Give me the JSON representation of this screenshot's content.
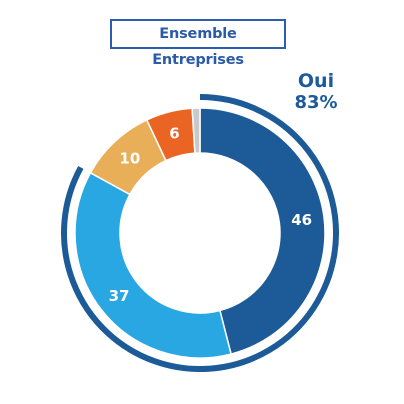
{
  "chart_data": {
    "type": "pie",
    "title": "Ensemble Entreprises",
    "values": [
      46,
      37,
      10,
      6,
      1
    ],
    "data_labels": [
      "46",
      "37",
      "10",
      "6",
      ""
    ],
    "colors": [
      "#1c5b97",
      "#29a7e2",
      "#e9af58",
      "#ea6423",
      "#c9c9c9"
    ],
    "annotation": {
      "label": "Oui",
      "value": "83%",
      "color": "#1c5b97"
    }
  }
}
